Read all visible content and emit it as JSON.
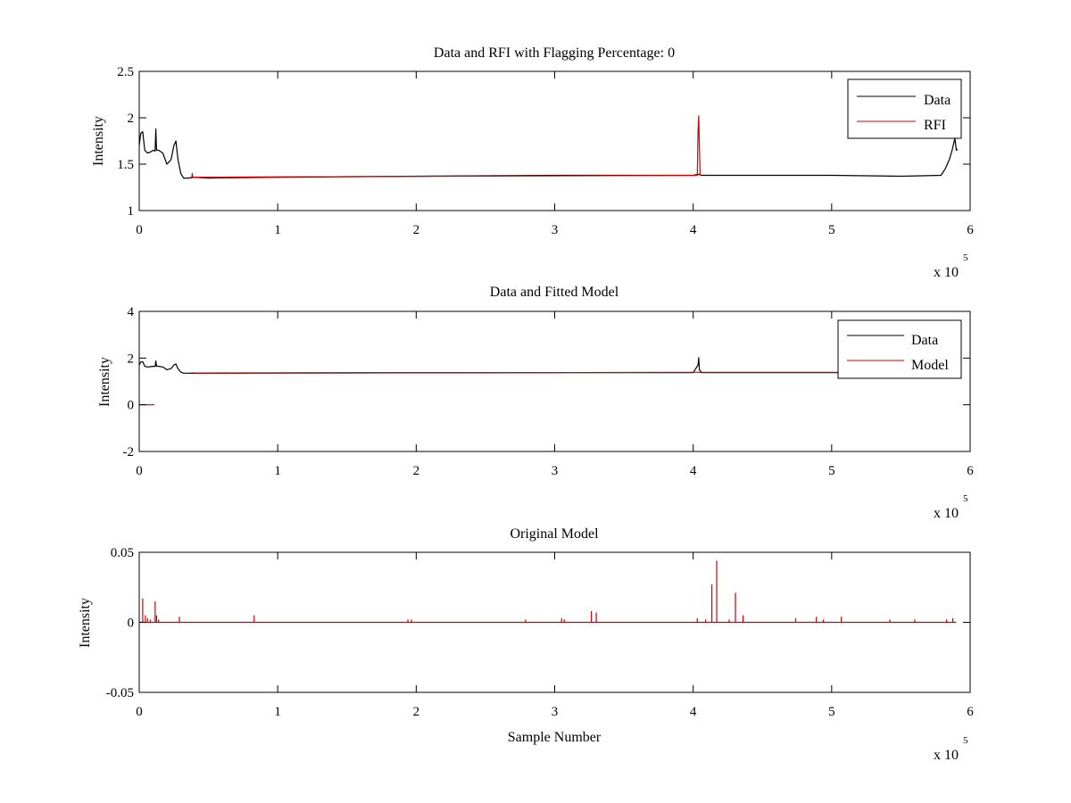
{
  "chart_data": [
    {
      "type": "line",
      "title": "Data and RFI with Flagging Percentage: 0",
      "xlabel": "",
      "ylabel": "Intensity",
      "xlim": [
        0,
        600000
      ],
      "ylim": [
        1,
        2.5
      ],
      "xticks": [
        0,
        100000,
        200000,
        300000,
        400000,
        500000,
        600000
      ],
      "xtick_labels": [
        "0",
        "1",
        "2",
        "3",
        "4",
        "5",
        "6"
      ],
      "yticks": [
        1,
        1.5,
        2,
        2.5
      ],
      "ytick_labels": [
        "1",
        "1.5",
        "2",
        "2.5"
      ],
      "x_exponent_label": "x 10",
      "x_exponent_power": "5",
      "legend": {
        "position": "top-right",
        "entries": [
          "Data",
          "RFI"
        ]
      },
      "series": [
        {
          "name": "Data",
          "color": "#000000",
          "x": [
            0,
            1000,
            2500,
            4000,
            6000,
            8000,
            10000,
            11500,
            12000,
            12500,
            14000,
            17000,
            20000,
            23000,
            25000,
            26500,
            28000,
            30000,
            32000,
            35000,
            40000,
            50000,
            100000,
            200000,
            300000,
            400000,
            404000,
            406000,
            450000,
            500000,
            550000,
            579000,
            582000,
            585000,
            587000,
            589000,
            590000,
            591000
          ],
          "y": [
            1.7,
            1.83,
            1.85,
            1.65,
            1.62,
            1.63,
            1.65,
            1.64,
            1.88,
            1.65,
            1.65,
            1.62,
            1.5,
            1.55,
            1.7,
            1.75,
            1.55,
            1.4,
            1.35,
            1.35,
            1.36,
            1.35,
            1.36,
            1.37,
            1.38,
            1.38,
            1.39,
            1.38,
            1.38,
            1.38,
            1.37,
            1.38,
            1.45,
            1.55,
            1.65,
            1.78,
            1.65,
            1.66
          ]
        },
        {
          "name": "RFI",
          "color": "#cc0000",
          "x": [
            38000,
            38300,
            38600,
            403000,
            403500,
            404000,
            404500,
            405000
          ],
          "y": [
            1.36,
            1.4,
            1.36,
            1.38,
            1.85,
            2.02,
            1.7,
            1.38
          ]
        }
      ]
    },
    {
      "type": "line",
      "title": "Data and Fitted Model",
      "xlabel": "",
      "ylabel": "Intensity",
      "xlim": [
        0,
        600000
      ],
      "ylim": [
        -2,
        4
      ],
      "xticks": [
        0,
        100000,
        200000,
        300000,
        400000,
        500000,
        600000
      ],
      "xtick_labels": [
        "0",
        "1",
        "2",
        "3",
        "4",
        "5",
        "6"
      ],
      "yticks": [
        -2,
        0,
        2,
        4
      ],
      "ytick_labels": [
        "-2",
        "0",
        "2",
        "4"
      ],
      "x_exponent_label": "x 10",
      "x_exponent_power": "5",
      "legend": {
        "position": "top-right",
        "entries": [
          "Data",
          "Model"
        ]
      },
      "series": [
        {
          "name": "Data",
          "color": "#000000",
          "x": [
            0,
            1000,
            2500,
            4000,
            6000,
            8000,
            10000,
            11500,
            12000,
            12500,
            14000,
            17000,
            20000,
            23000,
            25000,
            26500,
            28000,
            30000,
            32000,
            35000,
            40000,
            50000,
            100000,
            200000,
            300000,
            400000,
            403500,
            404000,
            404500,
            406000,
            450000,
            500000,
            505000
          ],
          "y": [
            1.7,
            1.83,
            1.85,
            1.65,
            1.62,
            1.63,
            1.65,
            1.64,
            1.88,
            1.65,
            1.65,
            1.62,
            1.5,
            1.55,
            1.7,
            1.75,
            1.55,
            1.4,
            1.35,
            1.35,
            1.36,
            1.35,
            1.36,
            1.37,
            1.38,
            1.38,
            1.7,
            2.02,
            1.5,
            1.38,
            1.38,
            1.38,
            1.38
          ]
        },
        {
          "name": "Model",
          "color": "#cc0000",
          "segments": [
            {
              "x": [
                0,
                11000
              ],
              "y": [
                0,
                0
              ]
            },
            {
              "x": [
                40000,
                100000,
                200000,
                300000,
                400000,
                500000,
                505000
              ],
              "y": [
                1.36,
                1.37,
                1.38,
                1.38,
                1.39,
                1.39,
                1.39
              ]
            }
          ]
        }
      ]
    },
    {
      "type": "line",
      "title": "Original Model",
      "xlabel": "Sample Number",
      "ylabel": "Intensity",
      "xlim": [
        0,
        600000
      ],
      "ylim": [
        -0.05,
        0.05
      ],
      "xticks": [
        0,
        100000,
        200000,
        300000,
        400000,
        500000,
        600000
      ],
      "xtick_labels": [
        "0",
        "1",
        "2",
        "3",
        "4",
        "5",
        "6"
      ],
      "yticks": [
        -0.05,
        0,
        0.05
      ],
      "ytick_labels": [
        "-0.05",
        "0",
        "0.05"
      ],
      "x_exponent_label": "x 10",
      "x_exponent_power": "5",
      "series": [
        {
          "color": "#cc0000",
          "baseline": 0,
          "x_end": 590000,
          "spikes": [
            {
              "x": 2500,
              "y": 0.017
            },
            {
              "x": 4500,
              "y": 0.005
            },
            {
              "x": 6000,
              "y": 0.003
            },
            {
              "x": 8000,
              "y": 0.002
            },
            {
              "x": 11500,
              "y": 0.015
            },
            {
              "x": 12500,
              "y": 0.005
            },
            {
              "x": 14000,
              "y": 0.002
            },
            {
              "x": 29000,
              "y": 0.004
            },
            {
              "x": 83000,
              "y": 0.005
            },
            {
              "x": 194000,
              "y": 0.002
            },
            {
              "x": 196500,
              "y": 0.002
            },
            {
              "x": 279000,
              "y": 0.002
            },
            {
              "x": 305000,
              "y": 0.003
            },
            {
              "x": 307000,
              "y": 0.002
            },
            {
              "x": 326500,
              "y": 0.008
            },
            {
              "x": 330000,
              "y": 0.007
            },
            {
              "x": 403000,
              "y": 0.003
            },
            {
              "x": 409000,
              "y": 0.002
            },
            {
              "x": 413500,
              "y": 0.027
            },
            {
              "x": 417000,
              "y": 0.044
            },
            {
              "x": 426000,
              "y": 0.002
            },
            {
              "x": 430500,
              "y": 0.021
            },
            {
              "x": 436000,
              "y": 0.005
            },
            {
              "x": 474000,
              "y": 0.003
            },
            {
              "x": 489000,
              "y": 0.004
            },
            {
              "x": 494000,
              "y": 0.002
            },
            {
              "x": 507000,
              "y": 0.004
            },
            {
              "x": 542000,
              "y": 0.002
            },
            {
              "x": 560000,
              "y": 0.002
            },
            {
              "x": 583000,
              "y": 0.002
            },
            {
              "x": 587500,
              "y": 0.003
            }
          ]
        }
      ]
    }
  ]
}
